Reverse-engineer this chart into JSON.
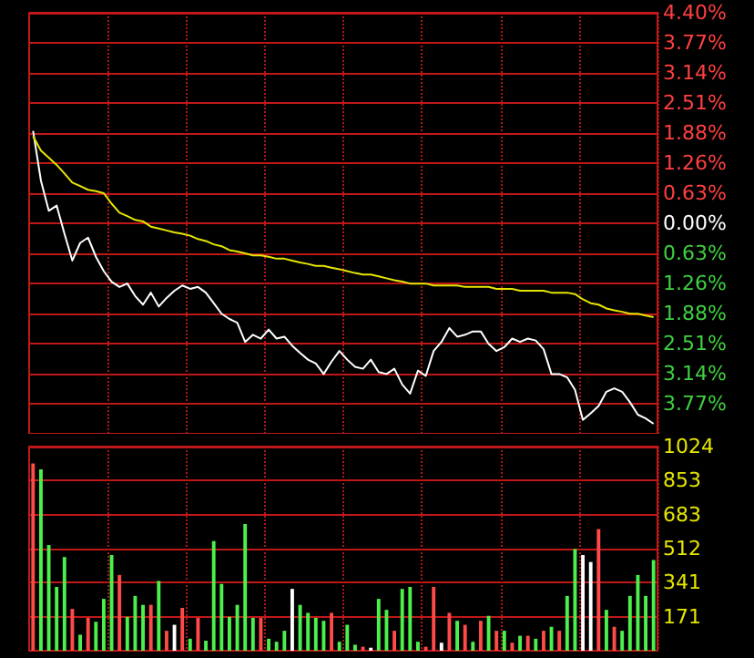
{
  "chart_data": [
    {
      "type": "line",
      "categories": [
        null,
        null,
        null,
        null,
        null,
        null,
        null,
        null,
        null,
        null,
        null,
        null,
        null,
        null,
        null,
        null,
        null,
        null,
        null,
        null,
        null,
        null,
        null,
        null,
        null,
        null,
        null,
        null,
        null,
        null,
        null,
        null,
        null,
        null,
        null,
        null,
        null,
        null,
        null,
        null,
        null,
        null,
        null,
        null,
        null,
        null,
        null,
        null,
        null,
        null,
        null,
        null,
        null,
        null,
        null,
        null,
        null,
        null,
        null,
        null,
        null,
        null,
        null,
        null,
        null,
        null,
        null,
        null,
        null,
        null,
        null,
        null,
        null,
        null,
        null,
        null,
        null,
        null,
        null,
        null
      ],
      "series": [
        {
          "color": "#ffffff",
          "values": [
            1.93,
            0.89,
            0.26,
            0.37,
            -0.22,
            -0.78,
            -0.41,
            -0.3,
            -0.7,
            -1.0,
            -1.22,
            -1.33,
            -1.26,
            -1.52,
            -1.7,
            -1.45,
            -1.74,
            -1.56,
            -1.41,
            -1.3,
            -1.37,
            -1.33,
            -1.45,
            -1.67,
            -1.89,
            -2.0,
            -2.08,
            -2.48,
            -2.33,
            -2.41,
            -2.22,
            -2.41,
            -2.37,
            -2.56,
            -2.71,
            -2.85,
            -2.93,
            -3.15,
            -2.89,
            -2.67,
            -2.85,
            -3.0,
            -3.04,
            -2.85,
            -3.11,
            -3.15,
            -3.04,
            -3.37,
            -3.56,
            -3.08,
            -3.19,
            -2.67,
            -2.48,
            -2.19,
            -2.37,
            -2.33,
            -2.26,
            -2.26,
            -2.52,
            -2.67,
            -2.59,
            -2.41,
            -2.48,
            -2.41,
            -2.45,
            -2.63,
            -3.15,
            -3.15,
            -3.22,
            -3.48,
            -4.11,
            -3.97,
            -3.82,
            -3.52,
            -3.45,
            -3.52,
            -3.74,
            -4.0,
            -4.08,
            -4.19
          ]
        },
        {
          "color": "#e6e600",
          "values": [
            1.82,
            1.52,
            1.37,
            1.22,
            1.04,
            0.85,
            0.78,
            0.7,
            0.67,
            0.63,
            0.41,
            0.22,
            0.15,
            0.07,
            0.04,
            -0.07,
            -0.11,
            -0.15,
            -0.19,
            -0.22,
            -0.26,
            -0.33,
            -0.37,
            -0.44,
            -0.48,
            -0.56,
            -0.59,
            -0.63,
            -0.67,
            -0.67,
            -0.7,
            -0.74,
            -0.74,
            -0.78,
            -0.82,
            -0.85,
            -0.89,
            -0.89,
            -0.93,
            -0.96,
            -1.0,
            -1.04,
            -1.07,
            -1.07,
            -1.11,
            -1.15,
            -1.19,
            -1.22,
            -1.26,
            -1.26,
            -1.26,
            -1.3,
            -1.3,
            -1.3,
            -1.3,
            -1.33,
            -1.33,
            -1.33,
            -1.33,
            -1.37,
            -1.37,
            -1.37,
            -1.41,
            -1.41,
            -1.41,
            -1.41,
            -1.45,
            -1.45,
            -1.45,
            -1.48,
            -1.59,
            -1.67,
            -1.7,
            -1.78,
            -1.82,
            -1.85,
            -1.89,
            -1.89,
            -1.93,
            -1.96
          ]
        }
      ],
      "ylim": [
        -4.4,
        4.4
      ],
      "yticks": [
        {
          "value": -3.77,
          "label": "3.77%"
        },
        {
          "value": -3.14,
          "label": "3.14%"
        },
        {
          "value": -2.51,
          "label": "2.51%"
        },
        {
          "value": -1.88,
          "label": "1.88%"
        },
        {
          "value": -1.26,
          "label": "1.26%"
        },
        {
          "value": -0.63,
          "label": "0.63%"
        },
        {
          "value": 0,
          "label": "0.00%"
        },
        {
          "value": 0.63,
          "label": "0.63%"
        },
        {
          "value": 1.26,
          "label": "1.26%"
        },
        {
          "value": 1.88,
          "label": "1.88%"
        },
        {
          "value": 2.51,
          "label": "2.51%"
        },
        {
          "value": 3.14,
          "label": "3.14%"
        },
        {
          "value": 3.77,
          "label": "3.77%"
        },
        {
          "value": 4.4,
          "label": "4.40%"
        }
      ],
      "grid": true,
      "tick_labels": "y"
    },
    {
      "type": "bar",
      "categories": [
        null,
        null,
        null,
        null,
        null,
        null,
        null,
        null,
        null,
        null,
        null,
        null,
        null,
        null,
        null,
        null,
        null,
        null,
        null,
        null,
        null,
        null,
        null,
        null,
        null,
        null,
        null,
        null,
        null,
        null,
        null,
        null,
        null,
        null,
        null,
        null,
        null,
        null,
        null,
        null,
        null,
        null,
        null,
        null,
        null,
        null,
        null,
        null,
        null,
        null,
        null,
        null,
        null,
        null,
        null,
        null,
        null,
        null,
        null,
        null,
        null,
        null,
        null,
        null,
        null,
        null,
        null,
        null,
        null,
        null,
        null,
        null,
        null,
        null,
        null,
        null,
        null,
        null,
        null,
        null
      ],
      "values": [
        940,
        910,
        530,
        320,
        470,
        210,
        80,
        165,
        145,
        260,
        480,
        380,
        170,
        275,
        230,
        230,
        350,
        100,
        130,
        215,
        60,
        165,
        50,
        550,
        335,
        170,
        230,
        635,
        165,
        165,
        60,
        45,
        100,
        310,
        230,
        190,
        165,
        150,
        190,
        45,
        130,
        30,
        20,
        15,
        260,
        205,
        100,
        310,
        320,
        45,
        20,
        320,
        40,
        190,
        150,
        130,
        45,
        150,
        175,
        100,
        100,
        40,
        75,
        75,
        60,
        100,
        120,
        100,
        275,
        510,
        480,
        445,
        610,
        205,
        120,
        100,
        275,
        380,
        275,
        455
      ],
      "colors": [
        "#ff4a4a",
        "#4cf04c",
        "#4cf04c",
        "#4cf04c",
        "#4cf04c",
        "#ff4a4a",
        "#4cf04c",
        "#ff4a4a",
        "#4cf04c",
        "#4cf04c",
        "#4cf04c",
        "#ff4a4a",
        "#4cf04c",
        "#4cf04c",
        "#4cf04c",
        "#ff4a4a",
        "#4cf04c",
        "#ff4a4a",
        "#ffffff",
        "#ff4a4a",
        "#4cf04c",
        "#ff4a4a",
        "#4cf04c",
        "#4cf04c",
        "#4cf04c",
        "#4cf04c",
        "#4cf04c",
        "#4cf04c",
        "#4cf04c",
        "#ff4a4a",
        "#4cf04c",
        "#4cf04c",
        "#4cf04c",
        "#ffffff",
        "#4cf04c",
        "#4cf04c",
        "#4cf04c",
        "#4cf04c",
        "#ff4a4a",
        "#4cf04c",
        "#4cf04c",
        "#4cf04c",
        "#ff4a4a",
        "#ffffff",
        "#4cf04c",
        "#4cf04c",
        "#ff4a4a",
        "#4cf04c",
        "#4cf04c",
        "#4cf04c",
        "#ff4a4a",
        "#ff4a4a",
        "#ffffff",
        "#ff4a4a",
        "#4cf04c",
        "#ff4a4a",
        "#4cf04c",
        "#ff4a4a",
        "#4cf04c",
        "#ff4a4a",
        "#4cf04c",
        "#ff4a4a",
        "#4cf04c",
        "#ff4a4a",
        "#4cf04c",
        "#ff4a4a",
        "#4cf04c",
        "#ff4a4a",
        "#4cf04c",
        "#4cf04c",
        "#ffffff",
        "#ffffff",
        "#ff4a4a",
        "#4cf04c",
        "#ff4a4a",
        "#4cf04c",
        "#4cf04c",
        "#4cf04c",
        "#4cf04c",
        "#4cf04c"
      ],
      "ylim": [
        0,
        1024
      ],
      "yticks": [
        171,
        341,
        512,
        683,
        853,
        1024
      ],
      "grid": true,
      "tick_labels": "y"
    }
  ]
}
